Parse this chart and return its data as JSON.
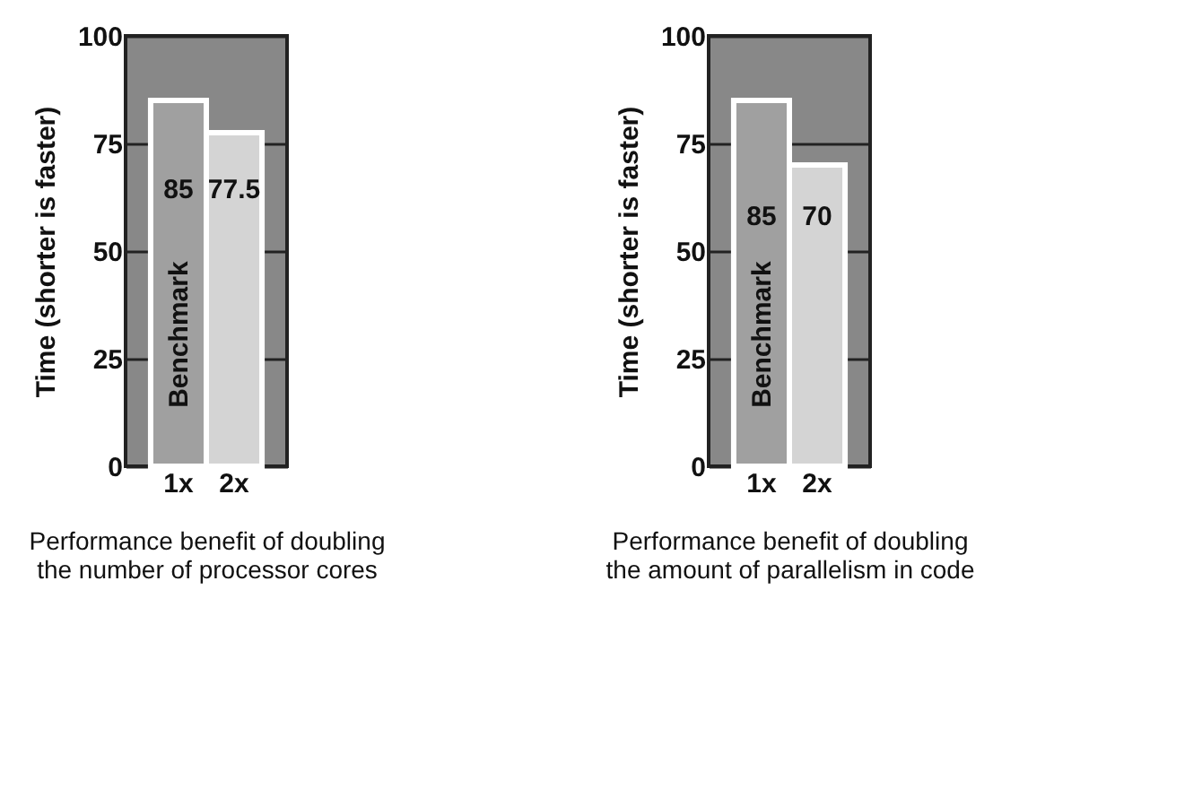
{
  "chart_data": [
    {
      "type": "bar",
      "categories": [
        "1x",
        "2x"
      ],
      "values": [
        85,
        77.5
      ],
      "colors": [
        "#a0a0a0",
        "#d4d4d4"
      ],
      "ylabel": "Time (shorter is faster)",
      "xlabel": "Performance benefit of doubling the number of processor cores",
      "ylim": [
        0,
        100
      ],
      "yticks": [
        0,
        25,
        50,
        75,
        100
      ],
      "grid": "y",
      "data_labels": true,
      "annotations": [
        "Benchmark"
      ]
    },
    {
      "type": "bar",
      "categories": [
        "1x",
        "2x"
      ],
      "values": [
        85,
        70
      ],
      "colors": [
        "#a0a0a0",
        "#d4d4d4"
      ],
      "ylabel": "Time (shorter is faster)",
      "xlabel": "Performance benefit of doubling the amount of parallelism in code",
      "ylim": [
        0,
        100
      ],
      "yticks": [
        0,
        25,
        50,
        75,
        100
      ],
      "grid": "y",
      "data_labels": true,
      "annotations": [
        "Benchmark"
      ]
    }
  ]
}
